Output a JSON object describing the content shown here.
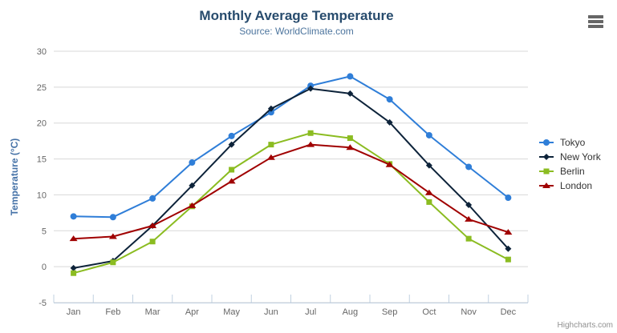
{
  "header": {
    "title": "Monthly Average Temperature",
    "subtitle": "Source: WorldClimate.com"
  },
  "context_menu": {
    "icon": "hamburger-icon"
  },
  "credits": {
    "text": "Highcharts.com"
  },
  "chart_data": {
    "type": "line",
    "title": "Monthly Average Temperature",
    "subtitle": "Source: WorldClimate.com",
    "categories": [
      "Jan",
      "Feb",
      "Mar",
      "Apr",
      "May",
      "Jun",
      "Jul",
      "Aug",
      "Sep",
      "Oct",
      "Nov",
      "Dec"
    ],
    "xlabel": "",
    "ylabel": "Temperature (°C)",
    "ylim": [
      -5,
      30
    ],
    "yticks": [
      -5,
      0,
      5,
      10,
      15,
      20,
      25,
      30
    ],
    "grid": true,
    "legend_position": "right",
    "series": [
      {
        "name": "Tokyo",
        "color": "#2f7ed8",
        "marker": "circle",
        "values": [
          7.0,
          6.9,
          9.5,
          14.5,
          18.2,
          21.5,
          25.2,
          26.5,
          23.3,
          18.3,
          13.9,
          9.6
        ]
      },
      {
        "name": "New York",
        "color": "#0d233a",
        "marker": "diamond",
        "values": [
          -0.2,
          0.8,
          5.7,
          11.3,
          17.0,
          22.0,
          24.8,
          24.1,
          20.1,
          14.1,
          8.6,
          2.5
        ]
      },
      {
        "name": "Berlin",
        "color": "#8bbc21",
        "marker": "square",
        "values": [
          -0.9,
          0.6,
          3.5,
          8.4,
          13.5,
          17.0,
          18.6,
          17.9,
          14.3,
          9.0,
          3.9,
          1.0
        ]
      },
      {
        "name": "London",
        "color": "#a00000",
        "marker": "triangle",
        "values": [
          3.9,
          4.2,
          5.7,
          8.5,
          11.9,
          15.2,
          17.0,
          16.6,
          14.2,
          10.3,
          6.6,
          4.8
        ]
      }
    ]
  },
  "colors": {
    "title": "#274b6d",
    "subtitle": "#4d759e",
    "axis_label": "#666666",
    "axis_title": "#4572a7",
    "grid": "#d8d8d8",
    "axis_line": "#c0d0e0",
    "legend_text": "#333333",
    "credits": "#909090",
    "menu_icon": "#666666"
  }
}
